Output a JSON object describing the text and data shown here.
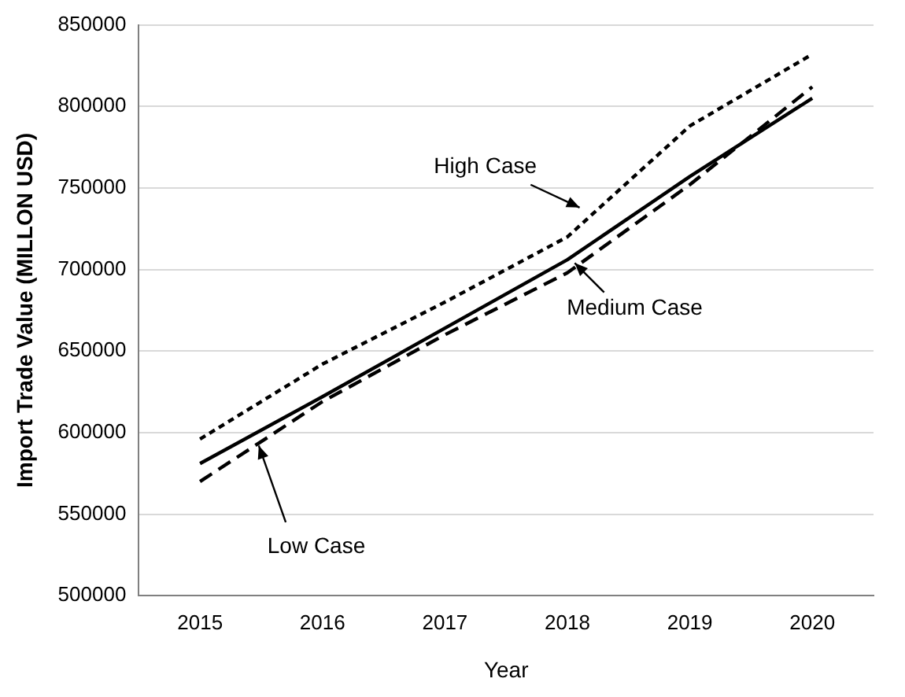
{
  "chart_data": {
    "type": "line",
    "xlabel": "Year",
    "ylabel": "Import Trade Value (MILLON USD)",
    "categories": [
      "2015",
      "2016",
      "2017",
      "2018",
      "2019",
      "2020"
    ],
    "series": [
      {
        "name": "High Case",
        "color": "#000000",
        "line_style": "dotted",
        "values": [
          596000,
          642000,
          680000,
          720000,
          788000,
          832000
        ]
      },
      {
        "name": "Medium Case",
        "color": "#000000",
        "line_style": "solid",
        "values": [
          581000,
          622000,
          664000,
          706000,
          757000,
          805000
        ]
      },
      {
        "name": "Low Case",
        "color": "#000000",
        "line_style": "dashed",
        "values": [
          570000,
          619000,
          660000,
          698000,
          752000,
          812000
        ]
      }
    ],
    "ylim": [
      500000,
      850000
    ],
    "yticks": [
      500000,
      550000,
      600000,
      650000,
      700000,
      750000,
      800000,
      850000
    ],
    "grid": "y",
    "marker": "none"
  }
}
